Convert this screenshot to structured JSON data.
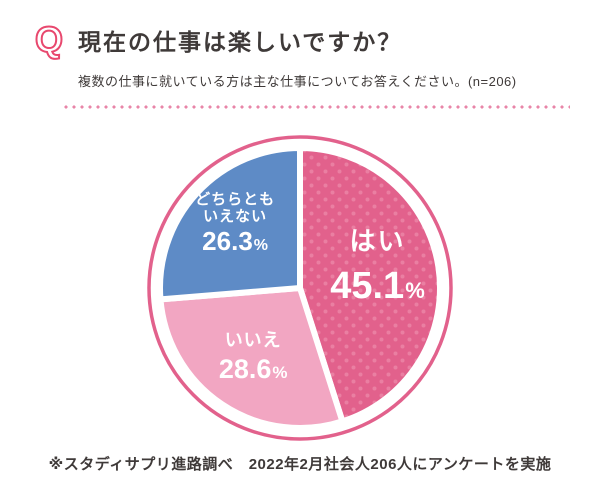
{
  "header": {
    "q_icon": "Q",
    "title": "現在の仕事は楽しいですか？",
    "subtitle": "複数の仕事に就いている方は主な仕事についてお答えください。(n=206)"
  },
  "colors": {
    "accent_q": "#e8486e",
    "divider_pink": "#e886a8",
    "text_dark": "#3f3a39"
  },
  "chart_data": {
    "type": "pie",
    "title": "現在の仕事は楽しいですか？",
    "n": 206,
    "unit": "%",
    "legend": "none",
    "start_angle_deg": 0,
    "direction": "clockwise",
    "ring_color": "#e2618c",
    "slices": [
      {
        "label": "はい",
        "value": 45.1,
        "color": "#e2618c",
        "dot_color": "#ea7fa2",
        "pattern": "dots",
        "text_color": "#ffffff"
      },
      {
        "label": "いいえ",
        "value": 28.6,
        "color": "#f2a6c2",
        "pattern": "solid",
        "text_color": "#ffffff"
      },
      {
        "label": "どちらとも\nいえない",
        "value": 26.3,
        "color": "#5e8bc6",
        "pattern": "solid",
        "text_color": "#ffffff"
      }
    ]
  },
  "footer": {
    "note": "※スタディサプリ進路調べ　2022年2月社会人206人にアンケートを実施"
  }
}
